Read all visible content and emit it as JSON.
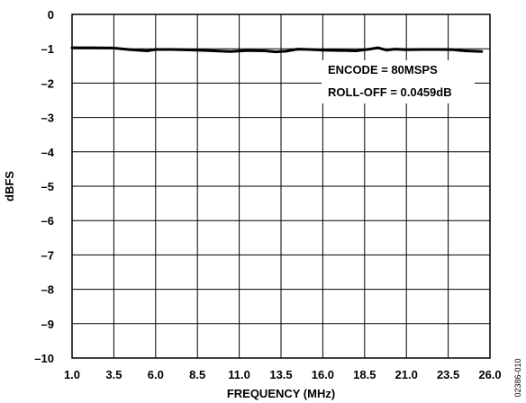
{
  "chart_data": {
    "type": "line",
    "xlabel": "FREQUENCY (MHz)",
    "ylabel": "dBFS",
    "xlim": [
      1.0,
      26.0
    ],
    "ylim": [
      -10,
      0
    ],
    "x_ticks": [
      "1.0",
      "3.5",
      "6.0",
      "8.5",
      "11.0",
      "13.5",
      "16.0",
      "18.5",
      "21.0",
      "23.5",
      "26.0"
    ],
    "y_ticks": [
      "0",
      "–1",
      "–2",
      "–3",
      "–4",
      "–5",
      "–6",
      "–7",
      "–8",
      "–9",
      "–10"
    ],
    "grid": true,
    "annotations": [
      "ENCODE = 80MSPS",
      "ROLL-OFF = 0.0459dB"
    ],
    "figure_id": "02386-010",
    "series": [
      {
        "x": [
          1.0,
          2.0,
          3.5,
          4.5,
          5.5,
          6.0,
          7.0,
          8.5,
          9.5,
          10.5,
          11.5,
          12.5,
          13.2,
          13.8,
          14.5,
          15.2,
          16.0,
          17.0,
          18.0,
          18.8,
          19.3,
          19.8,
          20.3,
          21.0,
          22.0,
          23.0,
          23.8,
          24.5,
          25.5
        ],
        "y": [
          -0.97,
          -0.97,
          -0.98,
          -1.03,
          -1.06,
          -1.02,
          -1.02,
          -1.04,
          -1.06,
          -1.08,
          -1.05,
          -1.06,
          -1.09,
          -1.07,
          -1.01,
          -1.02,
          -1.04,
          -1.05,
          -1.06,
          -1.01,
          -0.97,
          -1.04,
          -1.01,
          -1.03,
          -1.02,
          -1.02,
          -1.03,
          -1.06,
          -1.08
        ]
      }
    ]
  }
}
